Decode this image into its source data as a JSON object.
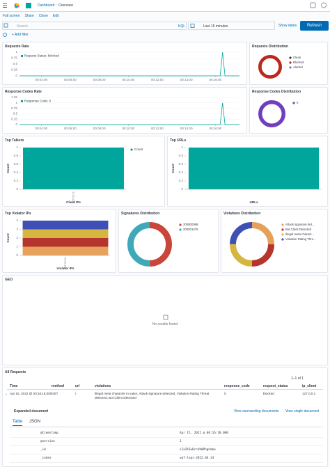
{
  "header": {
    "breadcrumbs": [
      "Dashboard",
      "Overview"
    ],
    "menu": [
      "Full screen",
      "Share",
      "Clone",
      "Edit"
    ]
  },
  "query": {
    "placeholder": "Search",
    "language": "KQL",
    "time_range": "Last 15 minutes",
    "show_dates": "Show dates",
    "refresh": "Refresh",
    "add_filter": "+ Add filter"
  },
  "panels": [
    {
      "title": "Requests Rate",
      "chart": {
        "type": "line",
        "x": [
          "00:02:30",
          "00:16:20",
          "00:16:30",
          "00:16:40",
          "00:17:40"
        ],
        "xlim": [
          "00:02:30",
          "00:17:40"
        ],
        "xticks": [
          "00:04:00",
          "00:06:00",
          "00:08:00",
          "00:10:00",
          "00:12:00",
          "00:14:00",
          "00:16:00"
        ],
        "ylim": [
          0,
          1
        ],
        "yticks": [
          0,
          0.25,
          0.5,
          0.75,
          1
        ],
        "series": [
          {
            "name": "Request Status: blocked",
            "color": "#00a69b",
            "values": [
              0,
              0,
              1,
              0,
              0
            ]
          }
        ]
      }
    },
    {
      "title": "Requests Distribution",
      "chart": {
        "type": "pie",
        "categories": [
          "Clean",
          "Blocked",
          "Alerted"
        ],
        "colors": [
          "#343741",
          "#bd271e",
          "#9170b8"
        ],
        "values": [
          0,
          1,
          0
        ]
      }
    },
    {
      "title": "Response Codes Rate",
      "chart": {
        "type": "line",
        "x": [
          "00:02:30",
          "00:16:20",
          "00:16:30",
          "00:16:40",
          "00:17:40"
        ],
        "xlim": [
          "00:02:30",
          "00:17:40"
        ],
        "xticks": [
          "00:04:00",
          "00:06:00",
          "00:08:00",
          "00:10:00",
          "00:12:00",
          "00:14:00",
          "00:16:00"
        ],
        "ylim": [
          0,
          1.25
        ],
        "yticks": [
          0,
          0.25,
          0.5,
          0.75,
          1,
          1.25
        ],
        "series": [
          {
            "name": "Response Code: 0",
            "color": "#00a69b",
            "values": [
              0,
              0,
              1,
              0,
              0
            ]
          }
        ]
      }
    },
    {
      "title": "Response Codes Distribution",
      "chart": {
        "type": "pie",
        "categories": [
          "0"
        ],
        "colors": [
          "#6f3fbf"
        ],
        "values": [
          1
        ]
      }
    },
    {
      "title": "Top Talkers",
      "chart": {
        "type": "bar",
        "categories": [
          "127.0.0.1"
        ],
        "ylim": [
          0,
          1
        ],
        "yticks": [
          0,
          0.2,
          0.4,
          0.6,
          0.8,
          1
        ],
        "ylabel": "Count",
        "xlabel": "Client IPs",
        "series": [
          {
            "name": "Count",
            "color": "#00a69b",
            "values": [
              1
            ]
          }
        ]
      }
    },
    {
      "title": "Top URLs",
      "chart": {
        "type": "bar",
        "categories": [
          null
        ],
        "ylim": [
          0,
          1
        ],
        "yticks": [
          0,
          0.2,
          0.4,
          0.6,
          0.8,
          1
        ],
        "ylabel": "Count",
        "xlabel": "URLs",
        "series": [
          {
            "color": "#00a69b",
            "values": [
              1
            ]
          }
        ]
      }
    },
    {
      "title": "Top Violator IPs",
      "chart": {
        "type": "bar",
        "categories": [
          "127.0.0.1"
        ],
        "ylim": [
          0,
          4
        ],
        "yticks": [
          0,
          1,
          2,
          3,
          4
        ],
        "ylabel": "Count",
        "xlabel": "Violator IPs",
        "series": [
          {
            "color": "#e7a35c",
            "values": [
              1
            ]
          },
          {
            "color": "#b5352e",
            "values": [
              1
            ]
          },
          {
            "color": "#d6b640",
            "values": [
              1
            ]
          },
          {
            "color": "#3e4fb5",
            "values": [
              1
            ]
          }
        ]
      }
    },
    {
      "title": "Signatures Distribution",
      "chart": {
        "type": "pie",
        "categories": [
          "200000098",
          "200001475"
        ],
        "colors": [
          "#c8473a",
          "#3fa9b9"
        ],
        "values": [
          1,
          1
        ]
      }
    },
    {
      "title": "Violations Distribution",
      "chart": {
        "type": "pie",
        "categories": [
          "Attack signature det...",
          "Bot Client Detected",
          "Illegal meta charact...",
          "Violation Rating Thre..."
        ],
        "colors": [
          "#e5a05c",
          "#b5352e",
          "#d6b640",
          "#3e4fb5"
        ],
        "values": [
          1,
          1,
          1,
          1
        ]
      }
    },
    {
      "title": "GEO",
      "message": "No results found"
    }
  ],
  "table": {
    "title": "All Requests",
    "pagination": "1–1 of 1",
    "columns": [
      "Time",
      "method",
      "url",
      "violations",
      "response_code",
      "request_status",
      "ip_client"
    ],
    "rows": [
      [
        "Apr 15, 2022 @ 00:16:18.000",
        "GET",
        "/",
        "Illegal meta character in value, Attack signature detected, Violation Rating Threat detected, Bot Client Detected",
        "0",
        "blocked",
        "127.0.0.1"
      ]
    ],
    "expanded": {
      "title": "Expanded document",
      "links": [
        "View surrounding documents",
        "View single document"
      ],
      "tabs": [
        "Table",
        "JSON"
      ],
      "fields": [
        [
          "@timestamp",
          "Apr 15, 2022 @ 00:16:18.000"
        ],
        [
          "@version",
          "1"
        ],
        [
          "_id",
          "sIaIKIwBrcUhWPhghmka"
        ],
        [
          "_index",
          "waf-logs-2022.04.14"
        ]
      ]
    }
  }
}
